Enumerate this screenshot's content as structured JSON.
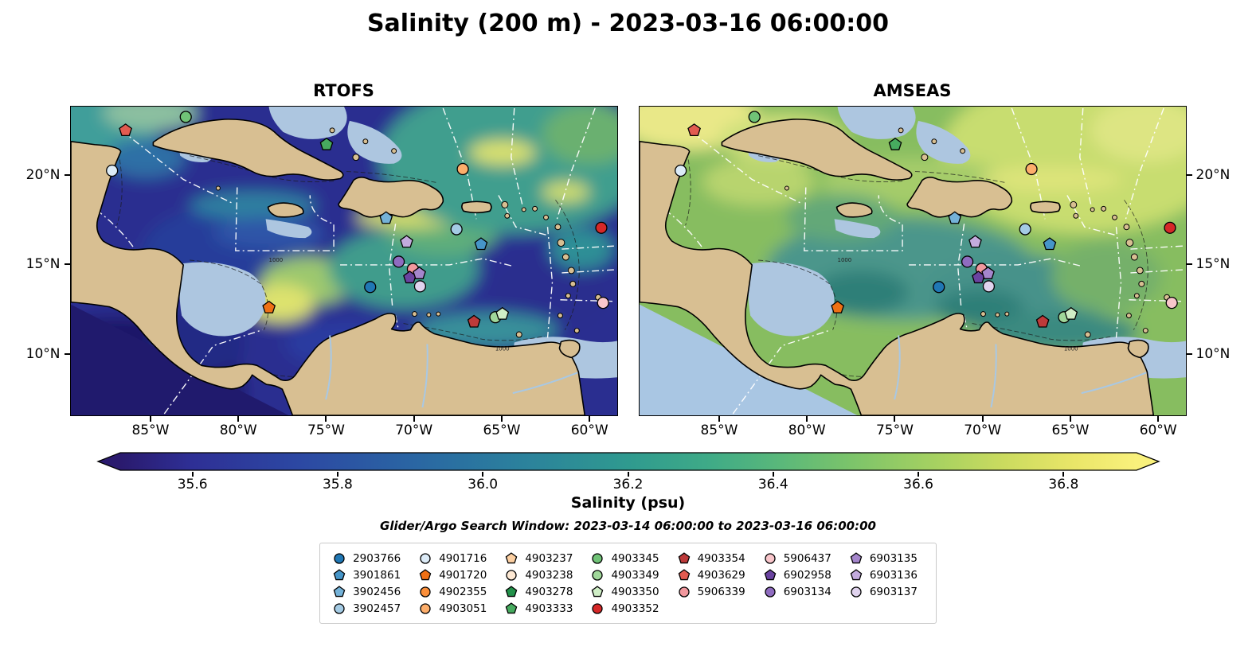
{
  "chart_data": {
    "type": "heatmap",
    "title": "Salinity (200 m) - 2023-03-16 06:00:00",
    "subtitle": "Glider/Argo Search Window: 2023-03-14 06:00:00 to 2023-03-16 06:00:00",
    "panels": [
      {
        "name": "RTOFS"
      },
      {
        "name": "AMSEAS"
      }
    ],
    "extent": {
      "lon_min": -89.6,
      "lon_max": -58.4,
      "lat_min": 6.5,
      "lat_max": 23.9
    },
    "axes": {
      "xticks": [
        {
          "lon": -85,
          "label": "85°W"
        },
        {
          "lon": -80,
          "label": "80°W"
        },
        {
          "lon": -75,
          "label": "75°W"
        },
        {
          "lon": -70,
          "label": "70°W"
        },
        {
          "lon": -65,
          "label": "65°W"
        },
        {
          "lon": -60,
          "label": "60°W"
        }
      ],
      "yticks": [
        {
          "lat": 20,
          "label": "20°N"
        },
        {
          "lat": 15,
          "label": "15°N"
        },
        {
          "lat": 10,
          "label": "10°N"
        }
      ]
    },
    "colorbar": {
      "label": "Salinity (psu)",
      "vmin": 35.5,
      "vmax": 36.9,
      "ticks": [
        {
          "value": 35.6,
          "label": "35.6"
        },
        {
          "value": 35.8,
          "label": "35.8"
        },
        {
          "value": 36.0,
          "label": "36.0"
        },
        {
          "value": 36.2,
          "label": "36.2"
        },
        {
          "value": 36.4,
          "label": "36.4"
        },
        {
          "value": 36.6,
          "label": "36.6"
        },
        {
          "value": 36.8,
          "label": "36.8"
        }
      ],
      "stops": [
        [
          0,
          "#2a1a6e"
        ],
        [
          0.07,
          "#2e2f95"
        ],
        [
          0.18,
          "#2c49a3"
        ],
        [
          0.29,
          "#2a66a3"
        ],
        [
          0.39,
          "#2b809d"
        ],
        [
          0.5,
          "#2f9a8f"
        ],
        [
          0.58,
          "#3fab87"
        ],
        [
          0.65,
          "#5ab87a"
        ],
        [
          0.72,
          "#7cc46a"
        ],
        [
          0.8,
          "#a5d161"
        ],
        [
          0.87,
          "#cbdb5f"
        ],
        [
          0.94,
          "#eae669"
        ],
        [
          1,
          "#f9f17c"
        ]
      ]
    },
    "contour_label": "1000",
    "platforms": {
      "2903766": {
        "shape": "circle",
        "color": "#2077b4"
      },
      "3901861": {
        "shape": "pentagon",
        "color": "#4695c8"
      },
      "3902456": {
        "shape": "pentagon",
        "color": "#74b2d8"
      },
      "3902457": {
        "shape": "circle",
        "color": "#a4cbe4"
      },
      "4901716": {
        "shape": "circle",
        "color": "#dcebf7"
      },
      "4901720": {
        "shape": "pentagon",
        "color": "#ef7014"
      },
      "4902355": {
        "shape": "circle",
        "color": "#fb8f3a"
      },
      "4903051": {
        "shape": "circle",
        "color": "#fdae6b"
      },
      "4903237": {
        "shape": "pentagon",
        "color": "#fdd0a2"
      },
      "4903238": {
        "shape": "circle",
        "color": "#fee9d4"
      },
      "4903278": {
        "shape": "pentagon",
        "color": "#22914a"
      },
      "4903333": {
        "shape": "pentagon",
        "color": "#47ab5f"
      },
      "4903345": {
        "shape": "circle",
        "color": "#70c377"
      },
      "4903349": {
        "shape": "circle",
        "color": "#a0d79a"
      },
      "4903350": {
        "shape": "pentagon",
        "color": "#cfeec6"
      },
      "4903352": {
        "shape": "circle",
        "color": "#d62828"
      },
      "4903354": {
        "shape": "pentagon",
        "color": "#bd3a3a"
      },
      "4903629": {
        "shape": "pentagon",
        "color": "#e25b50"
      },
      "5906339": {
        "shape": "circle",
        "color": "#f2989e"
      },
      "5906437": {
        "shape": "circle",
        "color": "#f9c6cb"
      },
      "6902958": {
        "shape": "pentagon",
        "color": "#6a43a0"
      },
      "6903134": {
        "shape": "circle",
        "color": "#8f6cc0"
      },
      "6903135": {
        "shape": "pentagon",
        "color": "#a586cc"
      },
      "6903136": {
        "shape": "pentagon",
        "color": "#c3abdd"
      },
      "6903137": {
        "shape": "circle",
        "color": "#e0d3ee"
      }
    },
    "markers": [
      {
        "id": "4903345",
        "lon": -83.04,
        "lat": 23.32
      },
      {
        "id": "4903629",
        "lon": -86.48,
        "lat": 22.56
      },
      {
        "id": "4901716",
        "lon": -87.25,
        "lat": 20.29
      },
      {
        "id": "4903333",
        "lon": -75.0,
        "lat": 21.76
      },
      {
        "id": "4903051",
        "lon": -67.22,
        "lat": 20.38
      },
      {
        "id": "3902456",
        "lon": -71.6,
        "lat": 17.61
      },
      {
        "id": "3902457",
        "lon": -67.58,
        "lat": 16.99
      },
      {
        "id": "3901861",
        "lon": -66.18,
        "lat": 16.14
      },
      {
        "id": "4903352",
        "lon": -59.31,
        "lat": 17.07
      },
      {
        "id": "6903136",
        "lon": -70.43,
        "lat": 16.27
      },
      {
        "id": "6903134",
        "lon": -70.88,
        "lat": 15.16
      },
      {
        "id": "5906339",
        "lon": -70.07,
        "lat": 14.75
      },
      {
        "id": "6902958",
        "lon": -70.25,
        "lat": 14.26
      },
      {
        "id": "6903135",
        "lon": -69.7,
        "lat": 14.49
      },
      {
        "id": "6903137",
        "lon": -69.66,
        "lat": 13.77
      },
      {
        "id": "2903766",
        "lon": -72.51,
        "lat": 13.73
      },
      {
        "id": "4901720",
        "lon": -78.29,
        "lat": 12.57
      },
      {
        "id": "4903354",
        "lon": -66.58,
        "lat": 11.77
      },
      {
        "id": "4903349",
        "lon": -65.36,
        "lat": 12.03
      },
      {
        "id": "4903350",
        "lon": -64.96,
        "lat": 12.21
      },
      {
        "id": "5906437",
        "lon": -59.21,
        "lat": 12.84
      }
    ],
    "legend": {
      "columns": [
        [
          "2903766",
          "3901861",
          "3902456",
          "3902457"
        ],
        [
          "4901716",
          "4901720",
          "4902355",
          "4903051"
        ],
        [
          "4903237",
          "4903238",
          "4903278",
          "4903333"
        ],
        [
          "4903345",
          "4903349",
          "4903350",
          "4903352"
        ],
        [
          "4903354",
          "4903629",
          "5906339"
        ],
        [
          "5906437",
          "6902958",
          "6903134"
        ],
        [
          "6903135",
          "6903136",
          "6903137"
        ]
      ]
    }
  }
}
